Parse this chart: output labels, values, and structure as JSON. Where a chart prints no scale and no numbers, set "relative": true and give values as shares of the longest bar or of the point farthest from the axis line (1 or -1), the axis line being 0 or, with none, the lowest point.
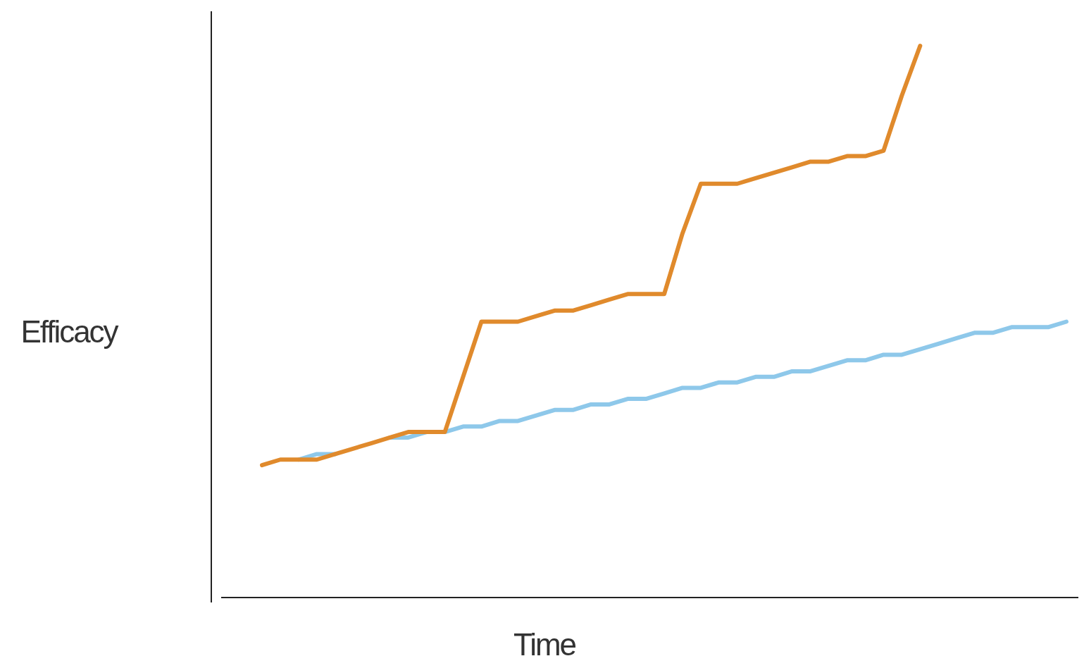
{
  "chart_data": {
    "type": "line",
    "relative": true,
    "xlabel": "Time",
    "ylabel": "Efficacy",
    "categories": [
      null,
      null,
      null,
      null,
      null,
      null,
      null,
      null,
      null,
      null,
      null,
      null,
      null,
      null,
      null,
      null,
      null,
      null,
      null,
      null,
      null,
      null,
      null,
      null,
      null,
      null,
      null,
      null,
      null,
      null,
      null,
      null,
      null,
      null,
      null,
      null,
      null,
      null,
      null,
      null,
      null,
      null,
      null,
      null,
      null
    ],
    "series": [
      {
        "color": "#8ec8ea",
        "values": [
          null,
          null,
          0.25,
          0.26,
          0.26,
          null,
          null,
          0.29,
          0.29,
          0.3,
          0.3,
          0.31,
          0.31,
          0.32,
          0.32,
          0.33,
          0.34,
          0.34,
          0.35,
          0.35,
          0.36,
          0.36,
          0.37,
          0.38,
          0.38,
          0.39,
          0.39,
          0.4,
          0.4,
          0.41,
          0.41,
          0.42,
          0.43,
          0.43,
          0.44,
          0.44,
          0.45,
          0.46,
          0.47,
          0.48,
          0.48,
          0.49,
          0.49,
          0.49,
          0.5
        ]
      },
      {
        "color": "#e08a2c",
        "values": [
          0.24,
          0.25,
          0.25,
          0.25,
          0.26,
          0.27,
          0.28,
          0.29,
          0.3,
          0.3,
          0.3,
          0.4,
          0.5,
          0.5,
          0.5,
          0.51,
          0.52,
          0.52,
          0.53,
          0.54,
          0.55,
          0.55,
          0.55,
          0.66,
          0.75,
          0.75,
          0.75,
          0.76,
          0.77,
          0.78,
          0.79,
          0.79,
          0.8,
          0.8,
          0.81,
          0.91,
          1.0,
          null,
          null,
          null,
          null,
          null,
          null,
          null,
          null
        ]
      }
    ]
  }
}
